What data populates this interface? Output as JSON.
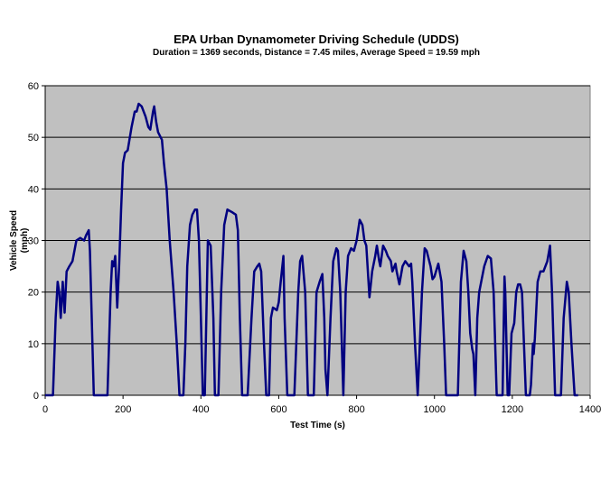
{
  "chart_data": {
    "type": "line",
    "title": "EPA Urban Dynamometer Driving Schedule (UDDS)",
    "subtitle": "Duration = 1369 seconds, Distance = 7.45 miles, Average Speed = 19.59 mph",
    "xlabel": "Test Time (s)",
    "ylabel": "Vehicle Speed (mph)",
    "xlim": [
      0,
      1400
    ],
    "ylim": [
      0,
      60
    ],
    "xticks": [
      0,
      200,
      400,
      600,
      800,
      1000,
      1200,
      1400
    ],
    "yticks": [
      0,
      10,
      20,
      30,
      40,
      50,
      60
    ],
    "grid": "horizontal",
    "legend": "none",
    "colors": {
      "plot_background": "#c0c0c0",
      "line": "#000080",
      "grid": "#808080"
    },
    "series": [
      {
        "points": [
          [
            0,
            0
          ],
          [
            20,
            0
          ],
          [
            27,
            15
          ],
          [
            32,
            22
          ],
          [
            36,
            20
          ],
          [
            40,
            15
          ],
          [
            45,
            22
          ],
          [
            50,
            16
          ],
          [
            55,
            24
          ],
          [
            62,
            25
          ],
          [
            70,
            26
          ],
          [
            80,
            30
          ],
          [
            90,
            30.5
          ],
          [
            100,
            30
          ],
          [
            105,
            31
          ],
          [
            112,
            32
          ],
          [
            115,
            28
          ],
          [
            125,
            0
          ],
          [
            160,
            0
          ],
          [
            168,
            20
          ],
          [
            172,
            26
          ],
          [
            176,
            25
          ],
          [
            180,
            27
          ],
          [
            185,
            17
          ],
          [
            190,
            25
          ],
          [
            195,
            36
          ],
          [
            200,
            45
          ],
          [
            205,
            47
          ],
          [
            212,
            47.5
          ],
          [
            222,
            52
          ],
          [
            230,
            55
          ],
          [
            235,
            55
          ],
          [
            240,
            56.5
          ],
          [
            248,
            56
          ],
          [
            258,
            54
          ],
          [
            265,
            52
          ],
          [
            270,
            51.5
          ],
          [
            277,
            55
          ],
          [
            280,
            56
          ],
          [
            285,
            53
          ],
          [
            290,
            51
          ],
          [
            300,
            49.5
          ],
          [
            305,
            45
          ],
          [
            312,
            40
          ],
          [
            320,
            30
          ],
          [
            330,
            20
          ],
          [
            338,
            10
          ],
          [
            345,
            0
          ],
          [
            355,
            0
          ],
          [
            360,
            10
          ],
          [
            365,
            25
          ],
          [
            372,
            33
          ],
          [
            378,
            35
          ],
          [
            385,
            36
          ],
          [
            390,
            36
          ],
          [
            395,
            30
          ],
          [
            400,
            15
          ],
          [
            405,
            0
          ],
          [
            410,
            0
          ],
          [
            418,
            30
          ],
          [
            425,
            29
          ],
          [
            432,
            15
          ],
          [
            436,
            0
          ],
          [
            445,
            0
          ],
          [
            452,
            20
          ],
          [
            460,
            33
          ],
          [
            468,
            36
          ],
          [
            480,
            35.5
          ],
          [
            490,
            35
          ],
          [
            495,
            32
          ],
          [
            500,
            15
          ],
          [
            506,
            0
          ],
          [
            520,
            0
          ],
          [
            530,
            15
          ],
          [
            537,
            24
          ],
          [
            545,
            25
          ],
          [
            550,
            25.5
          ],
          [
            555,
            24
          ],
          [
            562,
            10
          ],
          [
            568,
            0
          ],
          [
            575,
            0
          ],
          [
            580,
            15
          ],
          [
            585,
            17
          ],
          [
            595,
            16.5
          ],
          [
            600,
            18
          ],
          [
            605,
            22
          ],
          [
            612,
            27
          ],
          [
            615,
            15
          ],
          [
            622,
            0
          ],
          [
            640,
            0
          ],
          [
            650,
            20
          ],
          [
            655,
            26
          ],
          [
            660,
            27
          ],
          [
            668,
            20
          ],
          [
            675,
            0
          ],
          [
            690,
            0
          ],
          [
            697,
            20
          ],
          [
            705,
            22
          ],
          [
            712,
            23.5
          ],
          [
            717,
            15
          ],
          [
            720,
            5
          ],
          [
            725,
            0
          ],
          [
            733,
            15
          ],
          [
            740,
            26
          ],
          [
            748,
            28.5
          ],
          [
            752,
            28
          ],
          [
            758,
            20
          ],
          [
            766,
            0
          ],
          [
            772,
            20
          ],
          [
            778,
            27
          ],
          [
            786,
            28.5
          ],
          [
            793,
            28
          ],
          [
            800,
            30
          ],
          [
            808,
            34
          ],
          [
            815,
            33
          ],
          [
            820,
            30
          ],
          [
            825,
            29
          ],
          [
            833,
            19
          ],
          [
            840,
            24
          ],
          [
            848,
            27
          ],
          [
            852,
            29
          ],
          [
            858,
            26
          ],
          [
            861,
            25
          ],
          [
            868,
            29
          ],
          [
            875,
            28
          ],
          [
            880,
            27
          ],
          [
            888,
            26
          ],
          [
            892,
            24
          ],
          [
            900,
            25.5
          ],
          [
            903,
            24
          ],
          [
            910,
            21.5
          ],
          [
            918,
            25
          ],
          [
            925,
            26
          ],
          [
            935,
            25
          ],
          [
            940,
            25.5
          ],
          [
            943,
            22
          ],
          [
            950,
            10
          ],
          [
            957,
            0
          ],
          [
            968,
            20
          ],
          [
            975,
            28.5
          ],
          [
            980,
            28
          ],
          [
            990,
            25
          ],
          [
            995,
            22.5
          ],
          [
            1000,
            23
          ],
          [
            1010,
            25.5
          ],
          [
            1018,
            22
          ],
          [
            1025,
            10
          ],
          [
            1030,
            0
          ],
          [
            1060,
            0
          ],
          [
            1068,
            22
          ],
          [
            1075,
            28
          ],
          [
            1082,
            26
          ],
          [
            1087,
            20
          ],
          [
            1092,
            12
          ],
          [
            1097,
            9
          ],
          [
            1100,
            8
          ],
          [
            1105,
            0
          ],
          [
            1110,
            15
          ],
          [
            1115,
            20
          ],
          [
            1128,
            25
          ],
          [
            1137,
            27
          ],
          [
            1145,
            26.5
          ],
          [
            1152,
            20
          ],
          [
            1160,
            0
          ],
          [
            1175,
            0
          ],
          [
            1180,
            23
          ],
          [
            1182,
            20
          ],
          [
            1188,
            0
          ],
          [
            1192,
            0
          ],
          [
            1198,
            12
          ],
          [
            1205,
            14
          ],
          [
            1210,
            20
          ],
          [
            1215,
            21.5
          ],
          [
            1220,
            21.5
          ],
          [
            1225,
            20
          ],
          [
            1235,
            0
          ],
          [
            1245,
            0
          ],
          [
            1248,
            2
          ],
          [
            1253,
            10
          ],
          [
            1255,
            8
          ],
          [
            1258,
            11
          ],
          [
            1265,
            22
          ],
          [
            1272,
            24
          ],
          [
            1280,
            24
          ],
          [
            1290,
            26
          ],
          [
            1297,
            29
          ],
          [
            1302,
            20
          ],
          [
            1310,
            0
          ],
          [
            1325,
            0
          ],
          [
            1332,
            15
          ],
          [
            1340,
            22
          ],
          [
            1345,
            20
          ],
          [
            1352,
            10
          ],
          [
            1360,
            0
          ],
          [
            1369,
            0
          ]
        ]
      }
    ]
  }
}
